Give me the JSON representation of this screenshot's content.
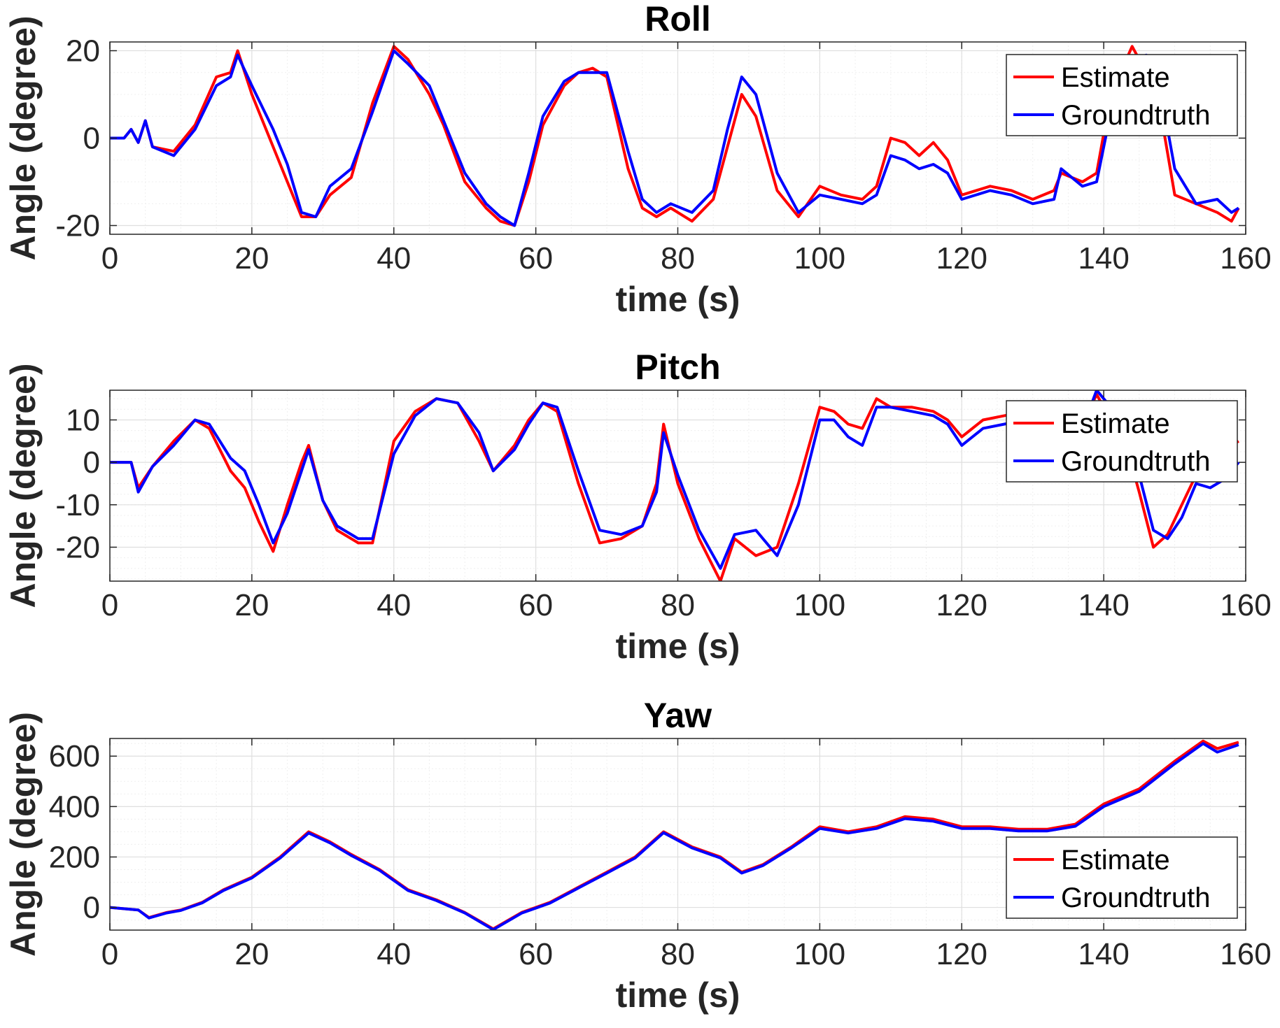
{
  "colors": {
    "estimate": "#ff0000",
    "groundtruth": "#0000ff",
    "axes": "#262626",
    "grid_major": "#dfdfdf",
    "grid_minor": "#efefef"
  },
  "chart_data": [
    {
      "type": "line",
      "title": "Roll",
      "xlabel": "time (s)",
      "ylabel": "Angle (degree)",
      "xlim": [
        0,
        160
      ],
      "ylim": [
        -22,
        22
      ],
      "xticks": [
        0,
        20,
        40,
        60,
        80,
        100,
        120,
        140,
        160
      ],
      "yticks": [
        -20,
        0,
        20
      ],
      "grid": true,
      "minor_grid": true,
      "legend_position": "top-right",
      "series": [
        {
          "name": "Estimate",
          "color": "#ff0000",
          "x": [
            0,
            2,
            3,
            4,
            5,
            6,
            9,
            12,
            15,
            17,
            18,
            20,
            23,
            25,
            27,
            29,
            31,
            34,
            37,
            40,
            42,
            45,
            47,
            50,
            53,
            55,
            57,
            59,
            61,
            64,
            66,
            68,
            70,
            73,
            75,
            77,
            79,
            82,
            85,
            87,
            89,
            91,
            94,
            97,
            100,
            103,
            106,
            108,
            110,
            112,
            114,
            116,
            118,
            120,
            124,
            127,
            130,
            133,
            134,
            137,
            139,
            141,
            144,
            146,
            148,
            150,
            153,
            156,
            158,
            159
          ],
          "y": [
            0,
            0,
            2,
            -1,
            4,
            -2,
            -3,
            3,
            14,
            15,
            20,
            10,
            -2,
            -10,
            -18,
            -18,
            -13,
            -9,
            8,
            21,
            18,
            10,
            3,
            -10,
            -16,
            -19,
            -20,
            -10,
            3,
            12,
            15,
            16,
            14,
            -7,
            -16,
            -18,
            -16,
            -19,
            -14,
            -2,
            10,
            5,
            -12,
            -18,
            -11,
            -13,
            -14,
            -11,
            0,
            -1,
            -4,
            -1,
            -5,
            -13,
            -11,
            -12,
            -14,
            -12,
            -8,
            -10,
            -8,
            10,
            21,
            15,
            6,
            -13,
            -15,
            -17,
            -19,
            -16
          ]
        },
        {
          "name": "Groundtruth",
          "color": "#0000ff",
          "x": [
            0,
            2,
            3,
            4,
            5,
            6,
            9,
            12,
            15,
            17,
            18,
            20,
            23,
            25,
            27,
            29,
            31,
            34,
            37,
            40,
            42,
            45,
            47,
            50,
            53,
            55,
            57,
            59,
            61,
            64,
            66,
            68,
            70,
            73,
            75,
            77,
            79,
            82,
            85,
            87,
            89,
            91,
            94,
            97,
            100,
            103,
            106,
            108,
            110,
            112,
            114,
            116,
            118,
            120,
            124,
            127,
            130,
            133,
            134,
            137,
            139,
            141,
            144,
            146,
            148,
            150,
            153,
            156,
            158,
            159
          ],
          "y": [
            0,
            0,
            2,
            -1,
            4,
            -2,
            -4,
            2,
            12,
            14,
            19,
            12,
            2,
            -6,
            -17,
            -18,
            -11,
            -7,
            6,
            20,
            17,
            12,
            4,
            -8,
            -15,
            -18,
            -20,
            -8,
            5,
            13,
            15,
            15,
            15,
            -3,
            -14,
            -17,
            -15,
            -17,
            -12,
            2,
            14,
            10,
            -8,
            -17,
            -13,
            -14,
            -15,
            -13,
            -4,
            -5,
            -7,
            -6,
            -8,
            -14,
            -12,
            -13,
            -15,
            -14,
            -7,
            -11,
            -10,
            6,
            18,
            19,
            11,
            -7,
            -15,
            -14,
            -17,
            -16
          ]
        }
      ]
    },
    {
      "type": "line",
      "title": "Pitch",
      "xlabel": "time (s)",
      "ylabel": "Angle (degree)",
      "xlim": [
        0,
        160
      ],
      "ylim": [
        -28,
        17
      ],
      "xticks": [
        0,
        20,
        40,
        60,
        80,
        100,
        120,
        140,
        160
      ],
      "yticks": [
        -20,
        -10,
        0,
        10
      ],
      "grid": true,
      "minor_grid": true,
      "legend_position": "top-right",
      "series": [
        {
          "name": "Estimate",
          "color": "#ff0000",
          "x": [
            0,
            2,
            3,
            4,
            6,
            9,
            12,
            14,
            17,
            19,
            21,
            23,
            25,
            27,
            28,
            30,
            32,
            35,
            37,
            40,
            43,
            46,
            49,
            52,
            54,
            57,
            59,
            61,
            63,
            66,
            69,
            72,
            75,
            77,
            78,
            80,
            83,
            86,
            88,
            91,
            94,
            97,
            100,
            102,
            104,
            106,
            108,
            110,
            113,
            116,
            118,
            120,
            123,
            126,
            129,
            132,
            135,
            137,
            139,
            141,
            143,
            145,
            147,
            149,
            151,
            153,
            155,
            157,
            159
          ],
          "y": [
            0,
            0,
            0,
            -6,
            -1,
            5,
            10,
            8,
            -2,
            -6,
            -14,
            -21,
            -10,
            0,
            4,
            -9,
            -16,
            -19,
            -19,
            5,
            12,
            15,
            14,
            5,
            -2,
            4,
            10,
            14,
            12,
            -5,
            -19,
            -18,
            -15,
            -5,
            9,
            -5,
            -18,
            -28,
            -18,
            -22,
            -20,
            -5,
            13,
            12,
            9,
            8,
            15,
            13,
            13,
            12,
            10,
            6,
            10,
            11,
            12,
            13,
            12,
            9,
            16,
            10,
            5,
            -7,
            -20,
            -17,
            -10,
            -3,
            4,
            3,
            5
          ]
        },
        {
          "name": "Groundtruth",
          "color": "#0000ff",
          "x": [
            0,
            2,
            3,
            4,
            6,
            9,
            12,
            14,
            17,
            19,
            21,
            23,
            25,
            27,
            28,
            30,
            32,
            35,
            37,
            40,
            43,
            46,
            49,
            52,
            54,
            57,
            59,
            61,
            63,
            66,
            69,
            72,
            75,
            77,
            78,
            80,
            83,
            86,
            88,
            91,
            94,
            97,
            100,
            102,
            104,
            106,
            108,
            110,
            113,
            116,
            118,
            120,
            123,
            126,
            129,
            132,
            135,
            137,
            139,
            141,
            143,
            145,
            147,
            149,
            151,
            153,
            155,
            157,
            159
          ],
          "y": [
            0,
            0,
            0,
            -7,
            -1,
            4,
            10,
            9,
            1,
            -2,
            -10,
            -19,
            -12,
            -2,
            3,
            -9,
            -15,
            -18,
            -18,
            2,
            11,
            15,
            14,
            7,
            -2,
            3,
            9,
            14,
            13,
            -2,
            -16,
            -17,
            -15,
            -7,
            7,
            -3,
            -16,
            -25,
            -17,
            -16,
            -22,
            -10,
            10,
            10,
            6,
            4,
            13,
            13,
            12,
            11,
            9,
            4,
            8,
            9,
            10,
            12,
            11,
            8,
            17,
            13,
            8,
            -3,
            -16,
            -18,
            -13,
            -5,
            -6,
            -4,
            0
          ]
        }
      ]
    },
    {
      "type": "line",
      "title": "Yaw",
      "xlabel": "time (s)",
      "ylabel": "Angle (degree)",
      "xlim": [
        0,
        160
      ],
      "ylim": [
        -90,
        670
      ],
      "xticks": [
        0,
        20,
        40,
        60,
        80,
        100,
        120,
        140,
        160
      ],
      "yticks": [
        0,
        200,
        400,
        600
      ],
      "grid": true,
      "minor_grid": true,
      "legend_position": "bottom-right",
      "series": [
        {
          "name": "Estimate",
          "color": "#ff0000",
          "x": [
            0,
            4,
            5.5,
            8,
            10,
            13,
            16,
            20,
            24,
            28,
            31,
            34,
            38,
            42,
            46,
            50,
            54,
            58,
            62,
            66,
            70,
            74,
            78,
            82,
            86,
            89,
            92,
            96,
            100,
            104,
            108,
            112,
            116,
            120,
            124,
            128,
            132,
            136,
            140,
            145,
            150,
            154,
            156,
            159
          ],
          "y": [
            0,
            -10,
            -40,
            -20,
            -10,
            20,
            70,
            120,
            200,
            300,
            260,
            210,
            150,
            70,
            30,
            -20,
            -85,
            -20,
            20,
            80,
            140,
            200,
            300,
            240,
            200,
            140,
            170,
            240,
            320,
            300,
            320,
            360,
            350,
            320,
            320,
            310,
            310,
            330,
            410,
            470,
            580,
            660,
            630,
            655
          ]
        },
        {
          "name": "Groundtruth",
          "color": "#0000ff",
          "x": [
            0,
            4,
            5.5,
            8,
            10,
            13,
            16,
            20,
            24,
            28,
            31,
            34,
            38,
            42,
            46,
            50,
            54,
            58,
            62,
            66,
            70,
            74,
            78,
            82,
            86,
            89,
            92,
            96,
            100,
            104,
            108,
            112,
            116,
            120,
            124,
            128,
            132,
            136,
            140,
            145,
            150,
            154,
            156,
            159
          ],
          "y": [
            0,
            -10,
            -42,
            -22,
            -12,
            18,
            67,
            117,
            196,
            295,
            256,
            206,
            147,
            67,
            27,
            -22,
            -88,
            -23,
            17,
            77,
            136,
            196,
            296,
            236,
            196,
            136,
            166,
            236,
            313,
            295,
            313,
            352,
            342,
            313,
            313,
            303,
            303,
            322,
            400,
            460,
            570,
            650,
            616,
            645
          ]
        }
      ]
    }
  ]
}
